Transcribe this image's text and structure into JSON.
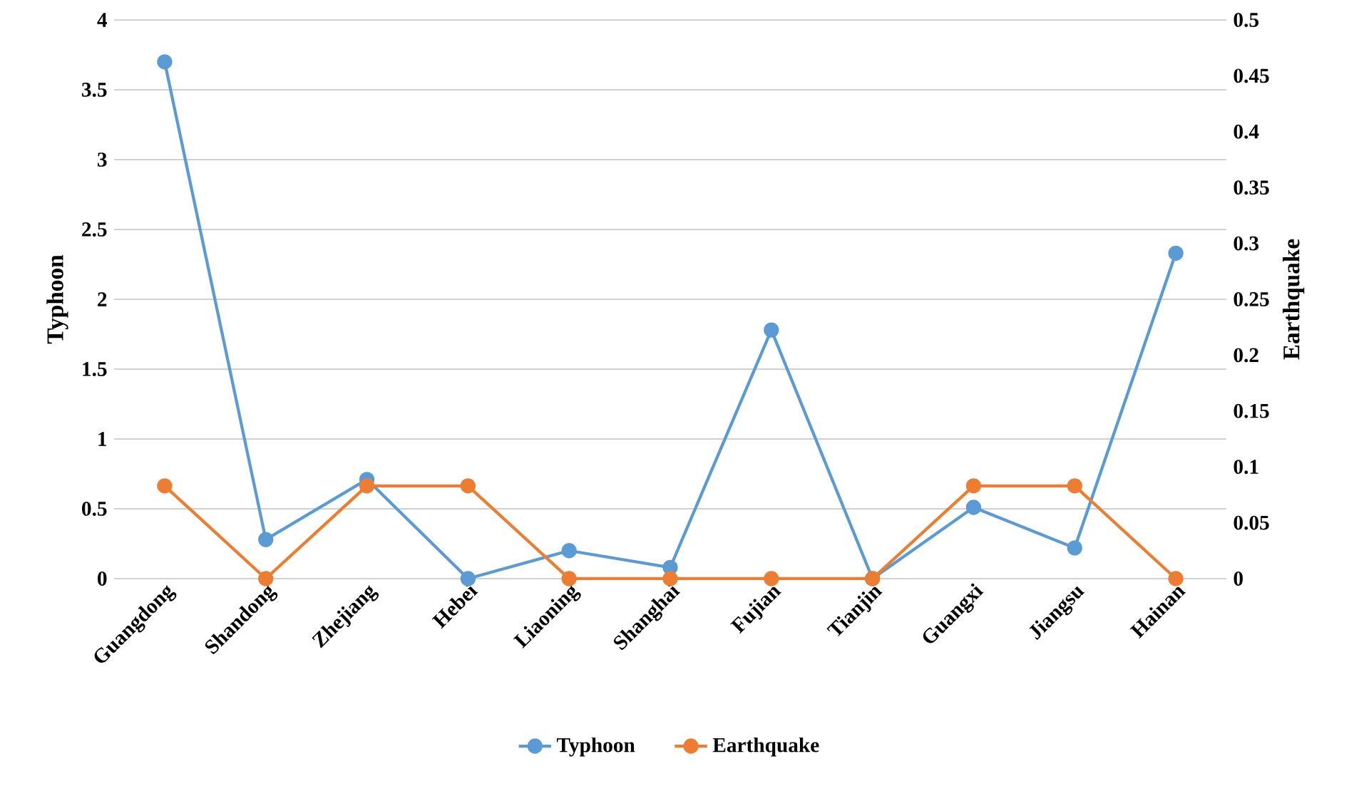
{
  "chart_data": {
    "type": "line",
    "categories": [
      "Guangdong",
      "Shandong",
      "Zhejiang",
      "Hebei",
      "Liaoning",
      "Shanghai",
      "Fujian",
      "Tianjin",
      "Guangxi",
      "Jiangsu",
      "Hainan"
    ],
    "series": [
      {
        "name": "Typhoon",
        "color": "#5b9bd5",
        "values": [
          3.7,
          0.28,
          0.71,
          0,
          0.2,
          0.08,
          1.78,
          0,
          0.51,
          0.22,
          2.33
        ]
      },
      {
        "name": "Earthquake",
        "color": "#ed7d31",
        "axis": "y2",
        "values": [
          0.083,
          0,
          0.083,
          0.083,
          0,
          0,
          0,
          0,
          0.083,
          0.083,
          0
        ]
      }
    ],
    "ylabel": "Typhoon",
    "y2label": "Earthquake",
    "ylim": [
      0,
      4
    ],
    "yticks": [
      0,
      0.5,
      1,
      1.5,
      2,
      2.5,
      3,
      3.5,
      4
    ],
    "y2lim": [
      0,
      0.5
    ],
    "y2ticks": [
      0,
      0.05,
      0.1,
      0.15,
      0.2,
      0.25,
      0.3,
      0.35,
      0.4,
      0.45,
      0.5
    ],
    "grid": "y",
    "legend": "bottom",
    "marker": "circle",
    "line_style": "solid"
  }
}
